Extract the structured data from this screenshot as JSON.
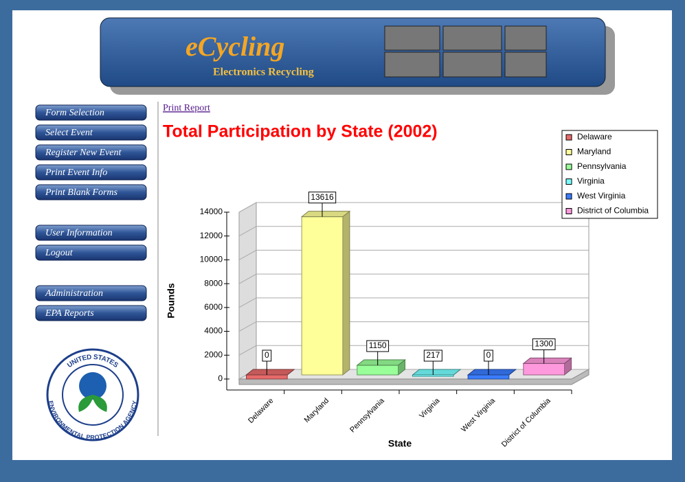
{
  "banner": {
    "logo": "eCycling",
    "subtitle": "Electronics Recycling"
  },
  "nav": [
    [
      "Form Selection",
      "Select Event",
      "Register New Event",
      "Print Event Info",
      "Print Blank Forms"
    ],
    [
      "User Information",
      "Logout"
    ],
    [
      "Administration",
      "EPA Reports"
    ]
  ],
  "epa_logo": {
    "top": "UNITED STATES",
    "bottom": "ENVIRONMENTAL PROTECTION AGENCY"
  },
  "print_link": "Print Report",
  "chart_data": {
    "type": "bar3d",
    "title": "Total Participation by State (2002)",
    "x_label": "State",
    "y_label": "Pounds",
    "categories": [
      "Delaware",
      "Maryland",
      "Pennsylvania",
      "Virginia",
      "West Virginia",
      "District of Columbia"
    ],
    "values": [
      0,
      13616,
      1150,
      217,
      0,
      1300
    ],
    "colors": [
      "#e86a6a",
      "#ffff99",
      "#99ff99",
      "#77ffff",
      "#3a7cff",
      "#ff99dd"
    ],
    "ylim": [
      0,
      14000
    ],
    "yticks": [
      0,
      2000,
      4000,
      6000,
      8000,
      10000,
      12000,
      14000
    ],
    "grid": true,
    "legend": "top-right"
  }
}
